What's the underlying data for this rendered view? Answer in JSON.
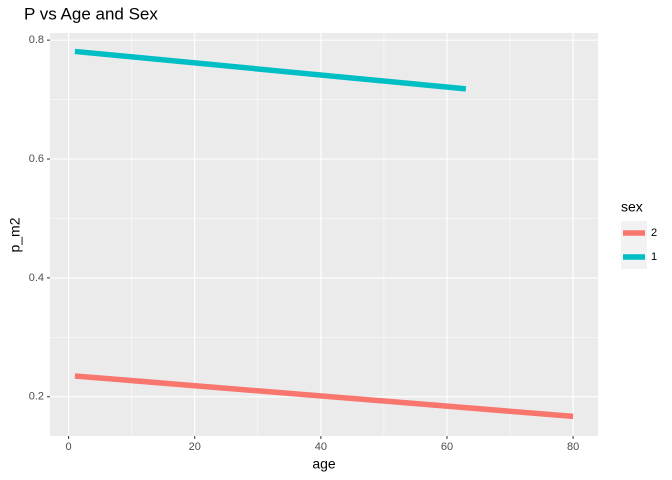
{
  "chart_data": {
    "type": "line",
    "title": "P vs Age and Sex",
    "x_label": "age",
    "y_label": "p_m2",
    "legend_title": "sex",
    "legend": "right",
    "grid": true,
    "xlim": [
      -2.95,
      83.95
    ],
    "ylim": [
      0.134,
      0.812
    ],
    "xticks": [
      0,
      20,
      40,
      60,
      80
    ],
    "yticks": [
      0.2,
      0.4,
      0.6,
      0.8
    ],
    "series": [
      {
        "name": "2",
        "color": "#F8766D",
        "x": [
          1,
          80
        ],
        "values": [
          0.235,
          0.167
        ]
      },
      {
        "name": "1",
        "color": "#00BFC4",
        "x": [
          1,
          63
        ],
        "values": [
          0.781,
          0.718
        ]
      }
    ]
  }
}
